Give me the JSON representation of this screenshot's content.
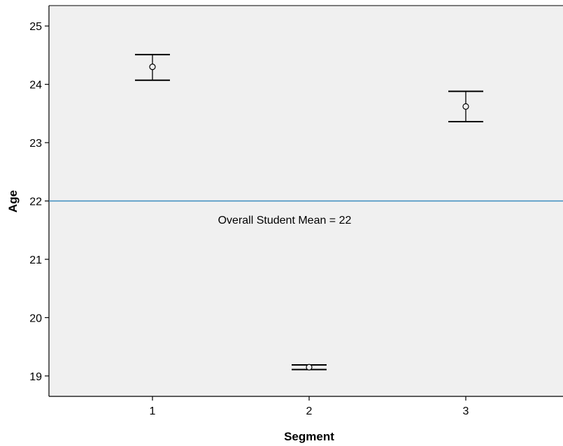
{
  "chart_data": {
    "type": "scatter",
    "subtype": "error-bar",
    "title": "",
    "xlabel": "Segment",
    "ylabel": "Age",
    "categories": [
      "1",
      "2",
      "3"
    ],
    "points": [
      {
        "x": "1",
        "mean": 24.3,
        "lower": 24.07,
        "upper": 24.51
      },
      {
        "x": "2",
        "mean": 19.15,
        "lower": 19.11,
        "upper": 19.19
      },
      {
        "x": "3",
        "mean": 23.62,
        "lower": 23.36,
        "upper": 23.88
      }
    ],
    "y_ticks": [
      "19",
      "20",
      "21",
      "22",
      "23",
      "24",
      "25"
    ],
    "ylim": [
      18.65,
      25.35
    ],
    "reference_line": {
      "value": 22,
      "label": "Overall Student Mean = 22",
      "color": "#3a8bbf"
    },
    "grid": false,
    "plot_background": "#f0f0f0"
  }
}
